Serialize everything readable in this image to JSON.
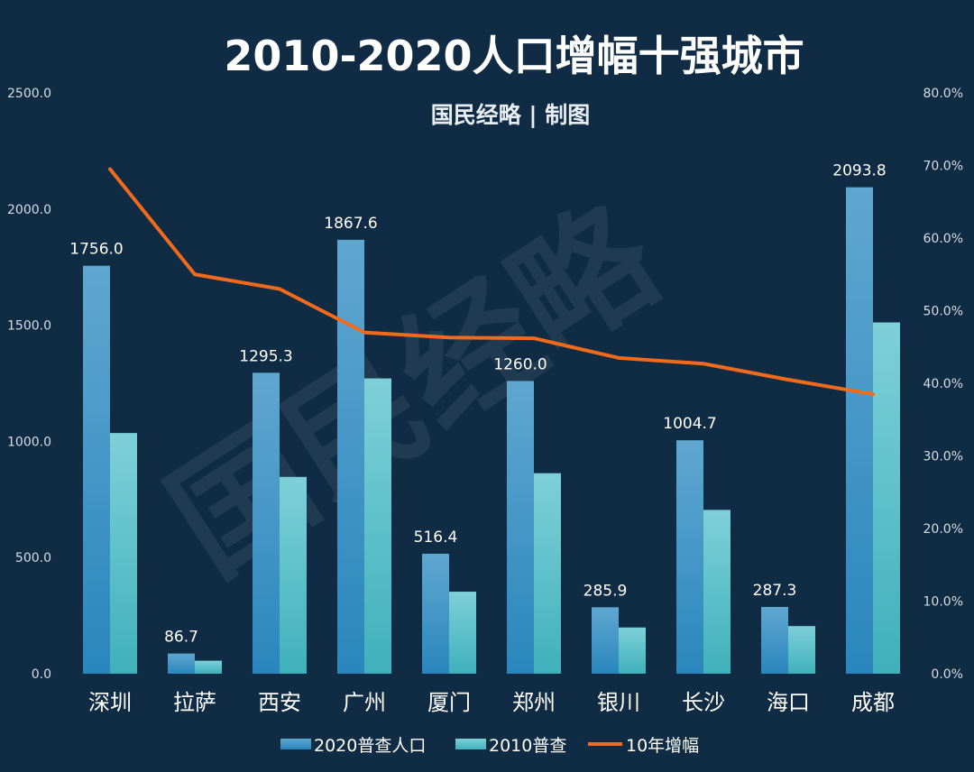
{
  "title": "2010-2020人口增幅十强城市",
  "subtitle": "国民经略 | 制图",
  "watermark": "国民经略",
  "colors": {
    "background": "#0f2c44",
    "bar2020_top": "#5fa7d0",
    "bar2020_bottom": "#2a86bd",
    "bar2010_top": "#7ed0d8",
    "bar2010_bottom": "#3fb0bb",
    "line": "#f26a1b"
  },
  "chart_data": {
    "type": "bar",
    "categories": [
      "深圳",
      "拉萨",
      "西安",
      "广州",
      "厦门",
      "郑州",
      "银川",
      "长沙",
      "海口",
      "成都"
    ],
    "series": [
      {
        "name": "2020普查人口",
        "type": "bar",
        "axis": "left",
        "values": [
          1756.0,
          86.7,
          1295.3,
          1867.6,
          516.4,
          1260.0,
          285.9,
          1004.7,
          287.3,
          2093.8
        ]
      },
      {
        "name": "2010普查",
        "type": "bar",
        "axis": "left",
        "values": [
          1036,
          56,
          847,
          1271,
          353,
          863,
          199,
          705,
          205,
          1512
        ]
      },
      {
        "name": "10年增幅",
        "type": "line",
        "axis": "right",
        "values": [
          0.695,
          0.55,
          0.53,
          0.47,
          0.463,
          0.462,
          0.435,
          0.427,
          0.405,
          0.385
        ]
      }
    ],
    "data_labels": [
      "1756.0",
      "86.7",
      "1295.3",
      "1867.6",
      "516.4",
      "1260.0",
      "285.9",
      "1004.7",
      "287.3",
      "2093.8"
    ],
    "y_left": {
      "min": 0,
      "max": 2500,
      "ticks": [
        "0.0",
        "500.0",
        "1000.0",
        "1500.0",
        "2000.0",
        "2500.0"
      ]
    },
    "y_right": {
      "min": 0,
      "max": 0.8,
      "ticks": [
        "0.0%",
        "10.0%",
        "20.0%",
        "30.0%",
        "40.0%",
        "50.0%",
        "60.0%",
        "70.0%",
        "80.0%"
      ]
    },
    "grid": false,
    "legend": {
      "position": "bottom",
      "items": [
        "2020普查人口",
        "2010普查",
        "10年增幅"
      ]
    }
  }
}
